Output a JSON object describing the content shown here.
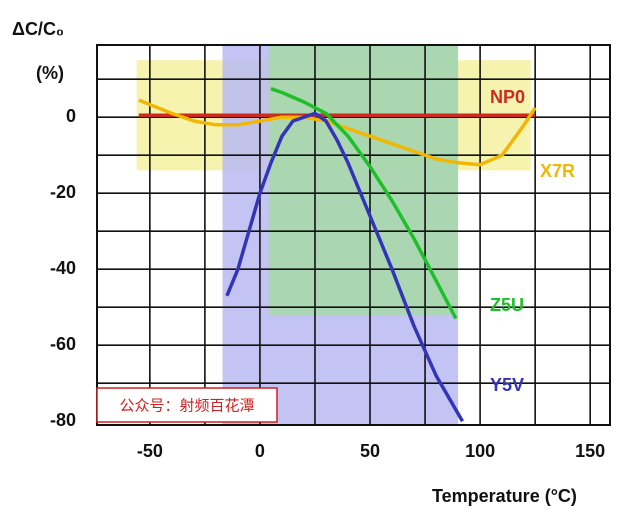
{
  "chart_data": {
    "type": "line",
    "y_title": "ΔC/C₀",
    "y_unit": "(%)",
    "x_title": "Temperature (°C)",
    "xlim": [
      -74,
      159
    ],
    "ylim": [
      -81,
      19
    ],
    "xticks": [
      -50,
      0,
      50,
      100,
      150
    ],
    "yticks": [
      -80,
      -60,
      -40,
      -20,
      0
    ],
    "xgrid": [
      -50,
      -25,
      0,
      25,
      50,
      75,
      100,
      125,
      150
    ],
    "ygrid": [
      -70,
      -60,
      -50,
      -40,
      -30,
      -20,
      -10,
      0,
      10
    ],
    "regions": [
      {
        "color": "#f4f1a0",
        "x": [
          -56,
          123
        ],
        "y": [
          -14,
          15
        ]
      },
      {
        "color": "#b9baf2",
        "x": [
          -17,
          90
        ],
        "y": [
          -81,
          19
        ]
      },
      {
        "color": "#a6d9a6",
        "x": [
          4,
          90
        ],
        "y": [
          -52,
          19
        ]
      }
    ],
    "series": [
      {
        "name": "NP0",
        "color": "#cc2a1e",
        "x": [
          -55,
          125
        ],
        "values": [
          0.5,
          0.5
        ]
      },
      {
        "name": "X7R",
        "color": "#f2b705",
        "x": [
          -55,
          -40,
          -30,
          -20,
          -10,
          0,
          10,
          20,
          30,
          40,
          50,
          60,
          70,
          80,
          90,
          100,
          110,
          120,
          125
        ],
        "values": [
          4.5,
          1,
          -1,
          -2,
          -2,
          -1,
          0,
          0,
          -1,
          -3,
          -5,
          -7,
          -9,
          -11,
          -12,
          -12.5,
          -10,
          -2,
          2.5
        ]
      },
      {
        "name": "Z5U",
        "color": "#1fbf2a",
        "x": [
          5,
          10,
          20,
          30,
          40,
          50,
          60,
          70,
          80,
          89
        ],
        "values": [
          7.5,
          6.5,
          4,
          1,
          -5,
          -13,
          -22,
          -32,
          -43,
          -53
        ]
      },
      {
        "name": "Y5V",
        "color": "#3434b8",
        "x": [
          -15,
          -10,
          -5,
          0,
          5,
          10,
          15,
          20,
          25,
          30,
          35,
          40,
          50,
          60,
          70,
          80,
          92
        ],
        "values": [
          -47,
          -40,
          -30,
          -20,
          -12,
          -5,
          -1,
          0,
          1,
          -1,
          -6,
          -12,
          -26,
          -40,
          -55,
          -68,
          -80
        ]
      }
    ],
    "watermark": "公众号：射频百花潭"
  }
}
